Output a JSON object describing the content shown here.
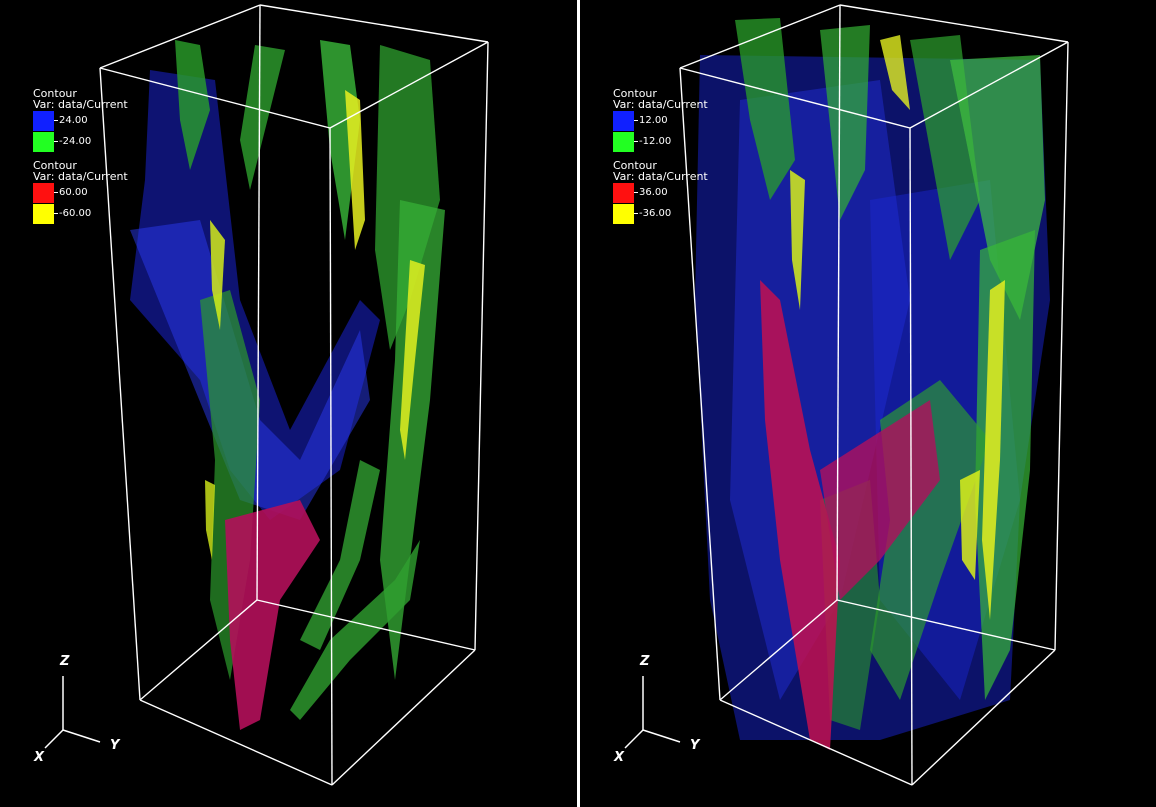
{
  "colors": {
    "blue": "#1020ff",
    "green": "#22ff22",
    "red": "#ff1010",
    "yellow": "#ffff00"
  },
  "views": [
    {
      "legend_top": {
        "title": "Contour",
        "var": "Var: data/Current",
        "entries": [
          {
            "color": "blue",
            "value": "24.00"
          },
          {
            "color": "green",
            "value": "-24.00"
          }
        ]
      },
      "legend_bottom": {
        "title": "Contour",
        "var": "Var: data/Current",
        "entries": [
          {
            "color": "red",
            "value": "60.00"
          },
          {
            "color": "yellow",
            "value": "-60.00"
          }
        ]
      },
      "axes": {
        "z": "Z",
        "x": "X",
        "y": "Y"
      }
    },
    {
      "legend_top": {
        "title": "Contour",
        "var": "Var: data/Current",
        "entries": [
          {
            "color": "blue",
            "value": "12.00"
          },
          {
            "color": "green",
            "value": "-12.00"
          }
        ]
      },
      "legend_bottom": {
        "title": "Contour",
        "var": "Var: data/Current",
        "entries": [
          {
            "color": "red",
            "value": "36.00"
          },
          {
            "color": "yellow",
            "value": "-36.00"
          }
        ]
      },
      "axes": {
        "z": "Z",
        "x": "X",
        "y": "Y"
      }
    }
  ]
}
